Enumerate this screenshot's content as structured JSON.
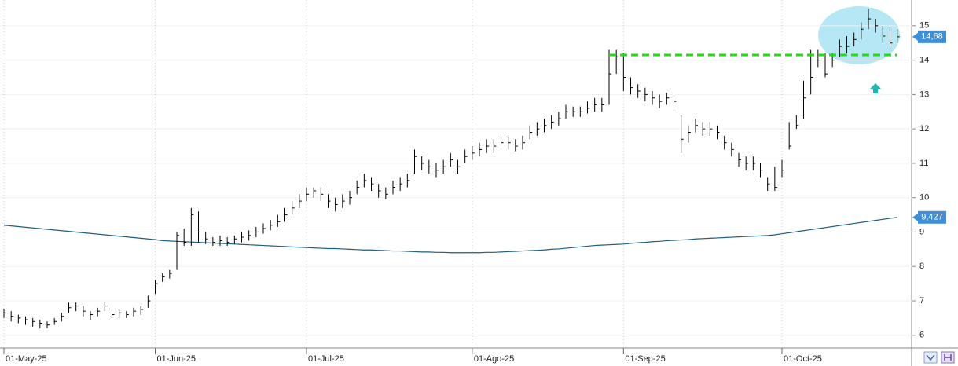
{
  "chart_data": {
    "type": "ohlc",
    "categories": [
      "01-May-25",
      null,
      null,
      null,
      null,
      null,
      null,
      null,
      null,
      null,
      null,
      null,
      null,
      null,
      null,
      null,
      null,
      null,
      null,
      null,
      null,
      "01-Jun-25",
      null,
      null,
      null,
      null,
      null,
      null,
      null,
      null,
      null,
      null,
      null,
      null,
      null,
      null,
      null,
      null,
      null,
      null,
      null,
      null,
      "01-Jul-25",
      null,
      null,
      null,
      null,
      null,
      null,
      null,
      null,
      null,
      null,
      null,
      null,
      null,
      null,
      null,
      null,
      null,
      null,
      null,
      null,
      null,
      null,
      "01-Ago-25",
      null,
      null,
      null,
      null,
      null,
      null,
      null,
      null,
      null,
      null,
      null,
      null,
      null,
      null,
      null,
      null,
      null,
      null,
      null,
      null,
      "01-Sep-25",
      null,
      null,
      null,
      null,
      null,
      null,
      null,
      null,
      null,
      null,
      null,
      null,
      null,
      null,
      null,
      null,
      null,
      null,
      null,
      null,
      null,
      "01-Oct-25",
      null,
      null,
      null,
      null,
      null,
      null,
      null,
      null,
      null,
      null,
      null,
      null,
      null,
      null,
      null,
      null
    ],
    "high": [
      6.75,
      6.7,
      6.6,
      6.55,
      6.5,
      6.45,
      6.4,
      6.5,
      6.65,
      6.95,
      6.95,
      6.85,
      6.7,
      6.8,
      6.95,
      6.75,
      6.75,
      6.7,
      6.8,
      6.85,
      7.15,
      7.6,
      7.8,
      7.9,
      9.0,
      9.1,
      9.7,
      9.6,
      9.0,
      8.85,
      8.9,
      8.85,
      8.9,
      9.0,
      9.05,
      9.15,
      9.25,
      9.35,
      9.5,
      9.7,
      9.9,
      10.1,
      10.3,
      10.3,
      10.3,
      10.1,
      10.0,
      10.1,
      10.2,
      10.5,
      10.7,
      10.6,
      10.4,
      10.3,
      10.5,
      10.6,
      10.7,
      11.4,
      11.2,
      11.1,
      11.0,
      11.1,
      11.3,
      11.1,
      11.4,
      11.5,
      11.6,
      11.7,
      11.7,
      11.8,
      11.75,
      11.7,
      11.8,
      12.1,
      12.2,
      12.3,
      12.4,
      12.5,
      12.7,
      12.65,
      12.65,
      12.8,
      12.9,
      12.9,
      14.3,
      14.3,
      14.2,
      13.5,
      13.3,
      13.2,
      13.1,
      13.0,
      13.05,
      13.0,
      12.4,
      12.1,
      12.3,
      12.2,
      12.2,
      12.1,
      11.8,
      11.6,
      11.3,
      11.2,
      11.2,
      11.0,
      10.6,
      10.9,
      11.1,
      12.2,
      12.4,
      13.4,
      14.3,
      14.3,
      14.2,
      14.2,
      14.6,
      14.7,
      14.8,
      15.1,
      15.5,
      15.2,
      15.0,
      14.9,
      14.9
    ],
    "low": [
      6.5,
      6.4,
      6.35,
      6.3,
      6.25,
      6.2,
      6.2,
      6.3,
      6.4,
      6.65,
      6.7,
      6.55,
      6.45,
      6.55,
      6.7,
      6.5,
      6.5,
      6.5,
      6.55,
      6.6,
      6.8,
      7.2,
      7.55,
      7.65,
      7.9,
      8.6,
      8.6,
      8.7,
      8.65,
      8.6,
      8.6,
      8.6,
      8.65,
      8.7,
      8.75,
      8.85,
      8.95,
      9.05,
      9.15,
      9.3,
      9.5,
      9.7,
      9.9,
      10.0,
      9.9,
      9.7,
      9.6,
      9.7,
      9.8,
      10.1,
      10.3,
      10.2,
      10.0,
      9.95,
      10.1,
      10.2,
      10.3,
      10.7,
      10.8,
      10.7,
      10.6,
      10.7,
      10.9,
      10.7,
      11.0,
      11.1,
      11.2,
      11.3,
      11.3,
      11.4,
      11.4,
      11.35,
      11.4,
      11.7,
      11.8,
      11.9,
      12.0,
      12.1,
      12.3,
      12.35,
      12.35,
      12.45,
      12.5,
      12.5,
      12.7,
      13.6,
      13.1,
      13.0,
      12.9,
      12.8,
      12.7,
      12.6,
      12.7,
      12.6,
      11.3,
      11.6,
      11.9,
      11.8,
      11.8,
      11.7,
      11.4,
      11.2,
      10.9,
      10.8,
      10.8,
      10.6,
      10.2,
      10.2,
      10.6,
      11.4,
      12.0,
      12.3,
      13.0,
      13.8,
      13.5,
      13.8,
      14.1,
      14.2,
      14.4,
      14.6,
      14.9,
      14.8,
      14.5,
      14.4,
      14.5
    ],
    "close": [
      6.65,
      6.55,
      6.5,
      6.45,
      6.4,
      6.35,
      6.3,
      6.4,
      6.55,
      6.8,
      6.85,
      6.7,
      6.6,
      6.7,
      6.85,
      6.6,
      6.65,
      6.6,
      6.7,
      6.75,
      7.0,
      7.5,
      7.7,
      7.8,
      8.9,
      8.7,
      9.5,
      9.0,
      8.8,
      8.7,
      8.75,
      8.7,
      8.8,
      8.85,
      8.9,
      9.0,
      9.1,
      9.2,
      9.3,
      9.5,
      9.7,
      9.9,
      10.1,
      10.2,
      10.1,
      9.9,
      9.8,
      9.9,
      10.0,
      10.3,
      10.5,
      10.4,
      10.2,
      10.1,
      10.3,
      10.4,
      10.5,
      11.2,
      11.0,
      10.9,
      10.8,
      10.9,
      11.1,
      10.9,
      11.2,
      11.3,
      11.4,
      11.5,
      11.5,
      11.6,
      11.6,
      11.5,
      11.6,
      11.9,
      12.0,
      12.1,
      12.2,
      12.3,
      12.5,
      12.5,
      12.5,
      12.6,
      12.7,
      12.7,
      13.6,
      14.1,
      13.5,
      13.2,
      13.1,
      13.0,
      12.9,
      12.8,
      12.9,
      12.8,
      11.7,
      11.9,
      12.1,
      12.0,
      12.0,
      11.9,
      11.6,
      11.4,
      11.1,
      11.0,
      11.0,
      10.8,
      10.4,
      10.3,
      10.8,
      11.5,
      12.1,
      12.9,
      13.5,
      14.0,
      13.6,
      14.0,
      14.4,
      14.4,
      14.6,
      14.9,
      15.2,
      15.0,
      14.7,
      14.5,
      14.68
    ],
    "color": "#000000",
    "moving_average": {
      "color": "#1f5f7f",
      "values": [
        9.2,
        9.18,
        9.16,
        9.14,
        9.12,
        9.1,
        9.08,
        9.06,
        9.04,
        9.02,
        9.0,
        8.98,
        8.96,
        8.94,
        8.92,
        8.9,
        8.88,
        8.86,
        8.84,
        8.82,
        8.8,
        8.78,
        8.75,
        8.74,
        8.73,
        8.72,
        8.71,
        8.7,
        8.69,
        8.68,
        8.67,
        8.66,
        8.65,
        8.64,
        8.63,
        8.62,
        8.61,
        8.6,
        8.59,
        8.58,
        8.57,
        8.56,
        8.55,
        8.54,
        8.53,
        8.52,
        8.52,
        8.51,
        8.5,
        8.49,
        8.48,
        8.48,
        8.47,
        8.46,
        8.45,
        8.45,
        8.44,
        8.43,
        8.42,
        8.42,
        8.41,
        8.41,
        8.4,
        8.4,
        8.4,
        8.4,
        8.4,
        8.41,
        8.41,
        8.42,
        8.43,
        8.44,
        8.45,
        8.46,
        8.47,
        8.48,
        8.5,
        8.51,
        8.53,
        8.55,
        8.57,
        8.59,
        8.61,
        8.62,
        8.63,
        8.64,
        8.65,
        8.67,
        8.69,
        8.7,
        8.72,
        8.73,
        8.75,
        8.76,
        8.77,
        8.78,
        8.8,
        8.81,
        8.82,
        8.83,
        8.84,
        8.85,
        8.86,
        8.87,
        8.88,
        8.89,
        8.9,
        8.92,
        8.95,
        8.98,
        9.01,
        9.04,
        9.07,
        9.1,
        9.13,
        9.16,
        9.19,
        9.22,
        9.25,
        9.28,
        9.31,
        9.34,
        9.37,
        9.4,
        9.427
      ]
    },
    "y_markers": [
      {
        "value": 14.68,
        "label": "14,68",
        "color": "#3f8fd8"
      },
      {
        "value": 9.427,
        "label": "9,427",
        "color": "#3f8fd8"
      }
    ],
    "hline": {
      "y": 14.15,
      "from": 84,
      "to": 124,
      "color": "#22dd11"
    },
    "ylim": [
      5.63,
      15.75
    ],
    "yticks": [
      6,
      7,
      8,
      9,
      10,
      11,
      12,
      13,
      14,
      15
    ],
    "grid": true
  }
}
